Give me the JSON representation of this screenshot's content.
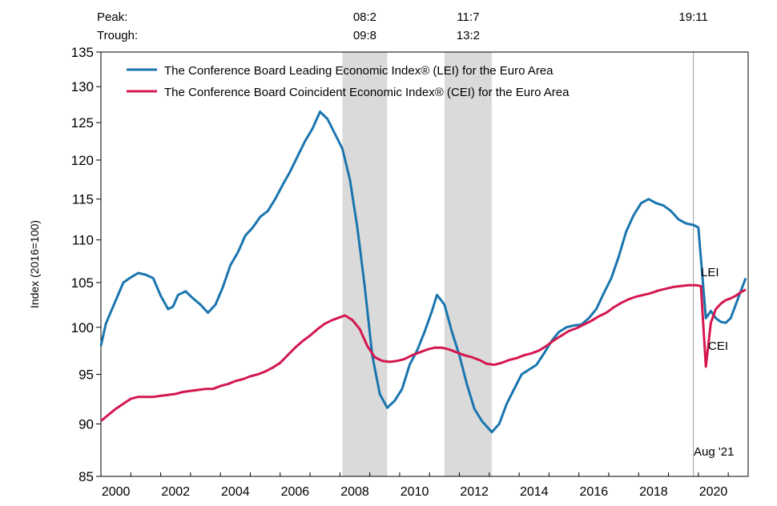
{
  "chart_data": {
    "type": "line",
    "ylabel": "Index (2016=100)",
    "y_scale": "log",
    "ylim": [
      85,
      135
    ],
    "y_ticks": [
      85,
      90,
      95,
      100,
      105,
      110,
      115,
      120,
      125,
      130,
      135
    ],
    "x_range": [
      "2000-01",
      "2021-08"
    ],
    "x_ticks": [
      "2000",
      "2002",
      "2004",
      "2006",
      "2008",
      "2010",
      "2012",
      "2014",
      "2016",
      "2018",
      "2020"
    ],
    "grid": false,
    "legend_position": "top-left",
    "cycle_labels": {
      "peak": "Peak:",
      "trough": "Trough:"
    },
    "recessions": [
      {
        "peak": "08:2",
        "trough": "09:8",
        "start": "2008-02",
        "end": "2009-08"
      },
      {
        "peak": "11:7",
        "trough": "13:2",
        "start": "2011-07",
        "end": "2013-02"
      },
      {
        "peak": "19:11",
        "trough": "",
        "start": "2019-11",
        "end": "2019-11"
      }
    ],
    "annotations": {
      "date_note": "Aug '21"
    },
    "series": [
      {
        "name": "The Conference Board Leading Economic Index® (LEI) for the Euro Area",
        "label": "LEI",
        "color": "#1a75ae",
        "points": [
          [
            "2000-01",
            98.0
          ],
          [
            "2000-03",
            100.4
          ],
          [
            "2000-07",
            103.0
          ],
          [
            "2000-10",
            105.0
          ],
          [
            "2001-01",
            105.6
          ],
          [
            "2001-04",
            106.1
          ],
          [
            "2001-07",
            105.9
          ],
          [
            "2001-10",
            105.5
          ],
          [
            "2002-01",
            103.5
          ],
          [
            "2002-04",
            102.0
          ],
          [
            "2002-06",
            102.3
          ],
          [
            "2002-08",
            103.6
          ],
          [
            "2002-11",
            104.0
          ],
          [
            "2003-02",
            103.2
          ],
          [
            "2003-05",
            102.5
          ],
          [
            "2003-08",
            101.6
          ],
          [
            "2003-11",
            102.5
          ],
          [
            "2004-02",
            104.5
          ],
          [
            "2004-05",
            107.0
          ],
          [
            "2004-08",
            108.5
          ],
          [
            "2004-11",
            110.5
          ],
          [
            "2005-02",
            111.5
          ],
          [
            "2005-05",
            112.8
          ],
          [
            "2005-08",
            113.5
          ],
          [
            "2005-11",
            115.0
          ],
          [
            "2006-02",
            116.8
          ],
          [
            "2006-05",
            118.5
          ],
          [
            "2006-08",
            120.5
          ],
          [
            "2006-11",
            122.5
          ],
          [
            "2007-02",
            124.2
          ],
          [
            "2007-05",
            126.5
          ],
          [
            "2007-08",
            125.5
          ],
          [
            "2007-11",
            123.5
          ],
          [
            "2008-02",
            121.5
          ],
          [
            "2008-05",
            117.5
          ],
          [
            "2008-08",
            111.5
          ],
          [
            "2008-11",
            104.5
          ],
          [
            "2009-02",
            97.0
          ],
          [
            "2009-05",
            93.0
          ],
          [
            "2009-08",
            91.6
          ],
          [
            "2009-11",
            92.3
          ],
          [
            "2010-02",
            93.5
          ],
          [
            "2010-05",
            96.0
          ],
          [
            "2010-08",
            97.5
          ],
          [
            "2010-11",
            99.5
          ],
          [
            "2011-02",
            101.8
          ],
          [
            "2011-04",
            103.6
          ],
          [
            "2011-07",
            102.5
          ],
          [
            "2011-10",
            99.5
          ],
          [
            "2012-01",
            97.0
          ],
          [
            "2012-04",
            94.0
          ],
          [
            "2012-07",
            91.5
          ],
          [
            "2012-10",
            90.3
          ],
          [
            "2013-02",
            89.2
          ],
          [
            "2013-05",
            90.0
          ],
          [
            "2013-08",
            92.0
          ],
          [
            "2013-11",
            93.5
          ],
          [
            "2014-02",
            95.0
          ],
          [
            "2014-05",
            95.5
          ],
          [
            "2014-08",
            96.0
          ],
          [
            "2014-11",
            97.2
          ],
          [
            "2015-02",
            98.5
          ],
          [
            "2015-05",
            99.5
          ],
          [
            "2015-08",
            100.0
          ],
          [
            "2015-11",
            100.2
          ],
          [
            "2016-02",
            100.3
          ],
          [
            "2016-05",
            101.0
          ],
          [
            "2016-08",
            102.0
          ],
          [
            "2016-11",
            103.8
          ],
          [
            "2017-02",
            105.5
          ],
          [
            "2017-05",
            108.0
          ],
          [
            "2017-08",
            111.0
          ],
          [
            "2017-11",
            113.0
          ],
          [
            "2018-02",
            114.5
          ],
          [
            "2018-05",
            115.0
          ],
          [
            "2018-08",
            114.5
          ],
          [
            "2018-11",
            114.2
          ],
          [
            "2019-02",
            113.5
          ],
          [
            "2019-05",
            112.5
          ],
          [
            "2019-08",
            112.0
          ],
          [
            "2019-11",
            111.8
          ],
          [
            "2020-01",
            111.5
          ],
          [
            "2020-04",
            101.0
          ],
          [
            "2020-06",
            101.8
          ],
          [
            "2020-08",
            101.0
          ],
          [
            "2020-10",
            100.6
          ],
          [
            "2020-12",
            100.5
          ],
          [
            "2021-02",
            101.0
          ],
          [
            "2021-04",
            102.5
          ],
          [
            "2021-06",
            104.0
          ],
          [
            "2021-08",
            105.5
          ]
        ]
      },
      {
        "name": "The Conference Board Coincident Economic Index® (CEI) for the Euro Area",
        "label": "CEI",
        "color": "#d4174f",
        "points": [
          [
            "2000-01",
            90.3
          ],
          [
            "2000-04",
            90.9
          ],
          [
            "2000-07",
            91.5
          ],
          [
            "2000-10",
            92.0
          ],
          [
            "2001-01",
            92.5
          ],
          [
            "2001-04",
            92.7
          ],
          [
            "2001-07",
            92.7
          ],
          [
            "2001-10",
            92.7
          ],
          [
            "2002-01",
            92.8
          ],
          [
            "2002-04",
            92.9
          ],
          [
            "2002-07",
            93.0
          ],
          [
            "2002-10",
            93.2
          ],
          [
            "2003-01",
            93.3
          ],
          [
            "2003-04",
            93.4
          ],
          [
            "2003-07",
            93.5
          ],
          [
            "2003-10",
            93.5
          ],
          [
            "2004-01",
            93.8
          ],
          [
            "2004-04",
            94.0
          ],
          [
            "2004-07",
            94.3
          ],
          [
            "2004-10",
            94.5
          ],
          [
            "2005-01",
            94.8
          ],
          [
            "2005-04",
            95.0
          ],
          [
            "2005-07",
            95.3
          ],
          [
            "2005-10",
            95.7
          ],
          [
            "2006-01",
            96.2
          ],
          [
            "2006-04",
            97.0
          ],
          [
            "2006-07",
            97.8
          ],
          [
            "2006-10",
            98.5
          ],
          [
            "2007-01",
            99.1
          ],
          [
            "2007-04",
            99.8
          ],
          [
            "2007-07",
            100.4
          ],
          [
            "2007-10",
            100.8
          ],
          [
            "2008-01",
            101.1
          ],
          [
            "2008-03",
            101.3
          ],
          [
            "2008-06",
            100.8
          ],
          [
            "2008-09",
            99.8
          ],
          [
            "2008-12",
            98.0
          ],
          [
            "2009-03",
            96.8
          ],
          [
            "2009-06",
            96.4
          ],
          [
            "2009-09",
            96.3
          ],
          [
            "2009-12",
            96.4
          ],
          [
            "2010-03",
            96.6
          ],
          [
            "2010-06",
            97.0
          ],
          [
            "2010-09",
            97.3
          ],
          [
            "2010-12",
            97.6
          ],
          [
            "2011-03",
            97.8
          ],
          [
            "2011-06",
            97.8
          ],
          [
            "2011-09",
            97.6
          ],
          [
            "2011-12",
            97.3
          ],
          [
            "2012-03",
            97.0
          ],
          [
            "2012-06",
            96.8
          ],
          [
            "2012-09",
            96.5
          ],
          [
            "2012-12",
            96.1
          ],
          [
            "2013-03",
            96.0
          ],
          [
            "2013-06",
            96.2
          ],
          [
            "2013-09",
            96.5
          ],
          [
            "2013-12",
            96.7
          ],
          [
            "2014-03",
            97.0
          ],
          [
            "2014-06",
            97.2
          ],
          [
            "2014-09",
            97.5
          ],
          [
            "2014-12",
            98.0
          ],
          [
            "2015-03",
            98.6
          ],
          [
            "2015-06",
            99.1
          ],
          [
            "2015-09",
            99.6
          ],
          [
            "2015-12",
            99.9
          ],
          [
            "2016-03",
            100.3
          ],
          [
            "2016-06",
            100.7
          ],
          [
            "2016-09",
            101.2
          ],
          [
            "2016-12",
            101.6
          ],
          [
            "2017-03",
            102.2
          ],
          [
            "2017-06",
            102.7
          ],
          [
            "2017-09",
            103.1
          ],
          [
            "2017-12",
            103.4
          ],
          [
            "2018-03",
            103.6
          ],
          [
            "2018-06",
            103.8
          ],
          [
            "2018-09",
            104.1
          ],
          [
            "2018-12",
            104.3
          ],
          [
            "2019-03",
            104.5
          ],
          [
            "2019-06",
            104.6
          ],
          [
            "2019-09",
            104.7
          ],
          [
            "2019-12",
            104.7
          ],
          [
            "2020-02",
            104.6
          ],
          [
            "2020-04",
            95.8
          ],
          [
            "2020-06",
            100.5
          ],
          [
            "2020-08",
            102.0
          ],
          [
            "2020-10",
            102.6
          ],
          [
            "2020-12",
            103.0
          ],
          [
            "2021-02",
            103.2
          ],
          [
            "2021-04",
            103.5
          ],
          [
            "2021-06",
            103.9
          ],
          [
            "2021-08",
            104.2
          ]
        ]
      }
    ]
  }
}
